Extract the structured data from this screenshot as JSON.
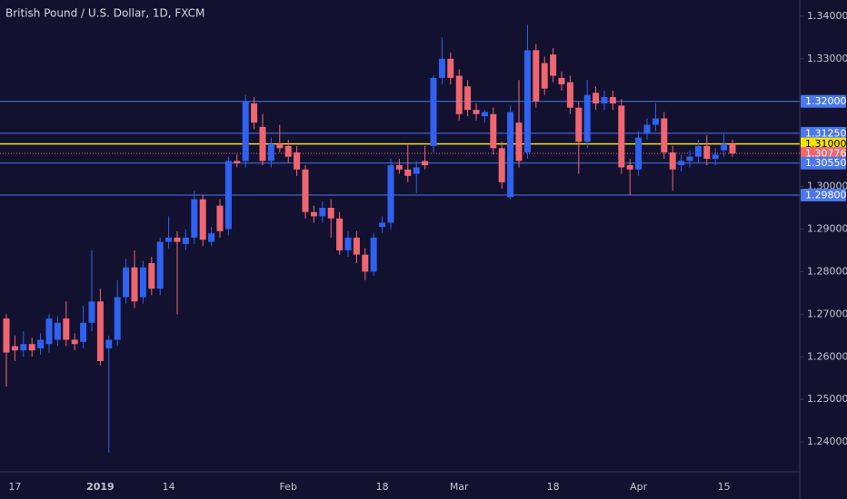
{
  "chart_data": {
    "type": "candlestick",
    "title": "British Pound / U.S. Dollar, 1D, FXCM",
    "categories": [
      null,
      "17",
      null,
      null,
      null,
      null,
      null,
      null,
      null,
      null,
      null,
      "2019",
      null,
      null,
      null,
      null,
      null,
      null,
      null,
      "14",
      null,
      null,
      null,
      null,
      null,
      null,
      null,
      null,
      null,
      null,
      null,
      null,
      null,
      "Feb",
      null,
      null,
      null,
      null,
      null,
      null,
      null,
      null,
      null,
      null,
      "18",
      null,
      null,
      null,
      null,
      null,
      null,
      null,
      null,
      "Mar",
      null,
      null,
      null,
      null,
      null,
      null,
      null,
      null,
      null,
      null,
      "18",
      null,
      null,
      null,
      null,
      null,
      null,
      null,
      null,
      null,
      "Apr",
      null,
      null,
      null,
      null,
      null,
      null,
      null,
      null,
      null,
      "15",
      null
    ],
    "open": [
      1.269,
      1.2625,
      1.2615,
      1.263,
      1.262,
      1.263,
      1.264,
      1.269,
      1.264,
      1.2635,
      1.268,
      1.273,
      1.262,
      1.264,
      1.274,
      1.281,
      1.274,
      1.282,
      1.276,
      1.287,
      1.288,
      1.2865,
      1.288,
      1.297,
      1.287,
      1.2955,
      1.29,
      1.306,
      1.306,
      1.3195,
      1.314,
      1.306,
      1.31,
      1.3095,
      1.308,
      1.304,
      1.294,
      1.293,
      1.295,
      1.2925,
      1.285,
      1.288,
      1.284,
      1.28,
      1.2905,
      1.2915,
      1.305,
      1.304,
      1.303,
      1.306,
      1.3095,
      1.3255,
      1.33,
      1.326,
      1.3235,
      1.318,
      1.3165,
      1.317,
      1.309,
      1.2975,
      1.315,
      1.308,
      1.332,
      1.329,
      1.331,
      1.3255,
      1.3245,
      1.3185,
      1.3105,
      1.322,
      1.3195,
      1.321,
      1.319,
      1.305,
      1.304,
      1.3125,
      1.3145,
      1.316,
      1.308,
      1.305,
      1.306,
      1.307,
      1.3095,
      1.3065,
      1.3085,
      1.31
    ],
    "high": [
      1.27,
      1.265,
      1.266,
      1.2645,
      1.2655,
      1.27,
      1.2695,
      1.273,
      1.2655,
      1.272,
      1.285,
      1.276,
      1.265,
      1.278,
      1.283,
      1.285,
      1.2825,
      1.2835,
      1.288,
      1.293,
      1.2895,
      1.29,
      1.299,
      1.298,
      1.2905,
      1.297,
      1.307,
      1.3075,
      1.3215,
      1.321,
      1.317,
      1.3115,
      1.3145,
      1.311,
      1.3095,
      1.305,
      1.2955,
      1.2965,
      1.297,
      1.294,
      1.2895,
      1.2895,
      1.2855,
      1.289,
      1.293,
      1.3065,
      1.3065,
      1.31,
      1.306,
      1.3095,
      1.326,
      1.335,
      1.3315,
      1.3275,
      1.325,
      1.3195,
      1.318,
      1.3185,
      1.3105,
      1.319,
      1.325,
      1.338,
      1.3335,
      1.3305,
      1.3325,
      1.327,
      1.326,
      1.32,
      1.325,
      1.3235,
      1.3225,
      1.3225,
      1.3205,
      1.3065,
      1.313,
      1.316,
      1.3195,
      1.3175,
      1.3095,
      1.3075,
      1.3085,
      1.311,
      1.312,
      1.309,
      1.3125,
      1.311
    ],
    "low": [
      1.253,
      1.259,
      1.26,
      1.26,
      1.2605,
      1.261,
      1.2625,
      1.2625,
      1.2615,
      1.262,
      1.266,
      1.258,
      1.2375,
      1.2625,
      1.2725,
      1.2715,
      1.2725,
      1.2745,
      1.2745,
      1.2855,
      1.27,
      1.285,
      1.2865,
      1.286,
      1.286,
      1.288,
      1.2885,
      1.3045,
      1.3045,
      1.3135,
      1.305,
      1.3045,
      1.308,
      1.3055,
      1.3025,
      1.2925,
      1.2915,
      1.2915,
      1.288,
      1.284,
      1.2835,
      1.282,
      1.278,
      1.279,
      1.289,
      1.29,
      1.303,
      1.301,
      1.2985,
      1.304,
      1.308,
      1.324,
      1.324,
      1.3155,
      1.3165,
      1.3155,
      1.315,
      1.3075,
      1.2995,
      1.297,
      1.3045,
      1.3065,
      1.3185,
      1.3215,
      1.3245,
      1.3225,
      1.317,
      1.303,
      1.309,
      1.318,
      1.318,
      1.318,
      1.303,
      1.298,
      1.3025,
      1.311,
      1.313,
      1.3065,
      1.299,
      1.3035,
      1.3045,
      1.3055,
      1.305,
      1.305,
      1.307,
      1.307
    ],
    "close": [
      1.261,
      1.2615,
      1.263,
      1.2615,
      1.264,
      1.269,
      1.268,
      1.264,
      1.263,
      1.268,
      1.273,
      1.259,
      1.264,
      1.274,
      1.281,
      1.273,
      1.281,
      1.276,
      1.287,
      1.288,
      1.287,
      1.288,
      1.297,
      1.2875,
      1.289,
      1.2895,
      1.306,
      1.3055,
      1.32,
      1.315,
      1.306,
      1.31,
      1.309,
      1.307,
      1.304,
      1.294,
      1.293,
      1.295,
      1.2925,
      1.285,
      1.288,
      1.284,
      1.28,
      1.288,
      1.2915,
      1.305,
      1.304,
      1.3025,
      1.3045,
      1.305,
      1.3255,
      1.33,
      1.3255,
      1.317,
      1.318,
      1.317,
      1.3175,
      1.309,
      1.301,
      1.3175,
      1.306,
      1.332,
      1.32,
      1.323,
      1.326,
      1.324,
      1.3185,
      1.3105,
      1.3215,
      1.3195,
      1.321,
      1.3195,
      1.3045,
      1.304,
      1.3115,
      1.3145,
      1.316,
      1.308,
      1.304,
      1.306,
      1.307,
      1.3095,
      1.3065,
      1.3075,
      1.31,
      1.30776
    ],
    "up_color": "#2f62f0",
    "down_color": "#ef6670",
    "ylim": [
      1.233,
      1.3438
    ],
    "yticks": [
      {
        "value": 1.34,
        "label": "1.34000"
      },
      {
        "value": 1.33,
        "label": "1.33000"
      },
      {
        "value": 1.3,
        "label": "1.30000"
      },
      {
        "value": 1.29,
        "label": "1.29000"
      },
      {
        "value": 1.28,
        "label": "1.28000"
      },
      {
        "value": 1.27,
        "label": "1.27000"
      },
      {
        "value": 1.26,
        "label": "1.26000"
      },
      {
        "value": 1.25,
        "label": "1.25000"
      },
      {
        "value": 1.24,
        "label": "1.24000"
      }
    ],
    "levels": [
      {
        "value": 1.32,
        "label": "1.32000",
        "color": "#4a78e8"
      },
      {
        "value": 1.3125,
        "label": "1.31250",
        "color": "#4a78e8"
      },
      {
        "value": 1.31,
        "label": "1.31000",
        "color": "#f5e400"
      },
      {
        "value": 1.30776,
        "label": "1.30776",
        "color": "#ef6670",
        "style": "dotted"
      },
      {
        "value": 1.3055,
        "label": "1.30550",
        "color": "#4a78e8"
      },
      {
        "value": 1.298,
        "label": "1.29800",
        "color": "#4a78e8"
      }
    ]
  }
}
